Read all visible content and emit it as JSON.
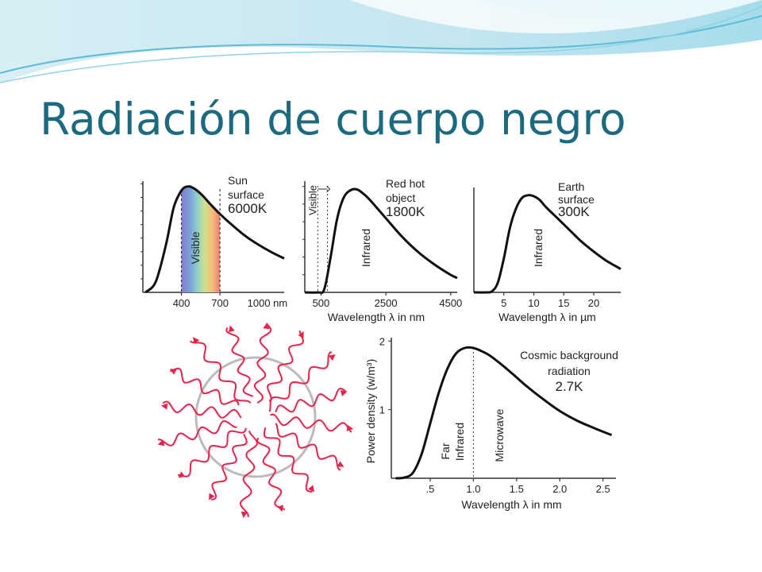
{
  "slide": {
    "title": "Radiación de cuerpo negro"
  },
  "colors": {
    "title": "#1b6a80",
    "banner_light": "#dff3f8",
    "banner_mid": "#8fd3e6",
    "curve": "#111111",
    "wave": "#e8224a",
    "circle": "#bbbbbb"
  },
  "chart_data": [
    {
      "type": "line",
      "id": "sun",
      "annotation_lines": [
        "Sun",
        "surface",
        "6000K"
      ],
      "band_label": "Visible",
      "band_range": [
        400,
        700
      ],
      "x": [
        120,
        200,
        280,
        340,
        400,
        450,
        500,
        560,
        620,
        700,
        800,
        900,
        1000,
        1100,
        1200
      ],
      "y": [
        0,
        0.1,
        0.45,
        0.8,
        0.96,
        1.0,
        0.98,
        0.92,
        0.84,
        0.74,
        0.63,
        0.53,
        0.45,
        0.38,
        0.32
      ],
      "xticks": [
        400,
        700
      ],
      "xtick_labels": [
        "400",
        "700"
      ],
      "xtick_extra": "1000 nm",
      "xlim": [
        100,
        1200
      ],
      "ylim": [
        0,
        1.05
      ],
      "ytick_count": 8
    },
    {
      "type": "line",
      "id": "redhot",
      "annotation_lines": [
        "Red hot",
        "object",
        "1800K"
      ],
      "side_label": "Visible",
      "band_label": "Infrared",
      "x": [
        0,
        400,
        600,
        800,
        1000,
        1200,
        1400,
        1600,
        1800,
        2000,
        2500,
        3000,
        3500,
        4000,
        4500,
        4700
      ],
      "y": [
        0,
        0,
        0.03,
        0.35,
        0.72,
        0.92,
        0.99,
        1.0,
        0.96,
        0.9,
        0.72,
        0.54,
        0.39,
        0.27,
        0.17,
        0.14
      ],
      "xticks": [
        500,
        2500,
        4500
      ],
      "xtick_labels": [
        "500",
        "2500",
        "4500"
      ],
      "xlabel": "Wavelength λ in nm",
      "xlim": [
        0,
        4700
      ],
      "ylim": [
        0,
        1.08
      ],
      "ytick_count": 6
    },
    {
      "type": "line",
      "id": "earth",
      "annotation_lines": [
        "Earth",
        "surface",
        "300K"
      ],
      "band_label": "Infrared",
      "x": [
        0,
        2,
        3,
        4,
        5,
        6,
        7,
        8,
        9,
        10,
        11,
        12,
        14,
        16,
        18,
        20,
        22,
        24.5
      ],
      "y": [
        0,
        0,
        0.01,
        0.1,
        0.35,
        0.66,
        0.86,
        0.97,
        1.0,
        0.99,
        0.95,
        0.88,
        0.76,
        0.64,
        0.52,
        0.42,
        0.33,
        0.24
      ],
      "xticks": [
        5,
        10,
        15,
        20
      ],
      "xtick_labels": [
        "5",
        "10",
        "15",
        "20"
      ],
      "xlabel": "Wavelength λ in µm",
      "xlim": [
        0,
        24.5
      ],
      "ylim": [
        0,
        1.08
      ]
    },
    {
      "type": "line",
      "id": "cosmic",
      "annotation_lines": [
        "Cosmic background",
        "radiation",
        "2.7K"
      ],
      "band_labels": [
        "Far",
        "Infrared",
        "Microwave"
      ],
      "divider_x": 1.0,
      "x": [
        0.1,
        0.2,
        0.3,
        0.4,
        0.5,
        0.6,
        0.7,
        0.8,
        0.9,
        1.0,
        1.1,
        1.2,
        1.4,
        1.6,
        1.8,
        2.0,
        2.2,
        2.4,
        2.6
      ],
      "y": [
        0,
        0.01,
        0.08,
        0.35,
        0.8,
        1.25,
        1.6,
        1.82,
        1.9,
        1.9,
        1.85,
        1.78,
        1.58,
        1.36,
        1.16,
        0.98,
        0.84,
        0.73,
        0.63
      ],
      "xticks": [
        0.5,
        1.0,
        1.5,
        2.0,
        2.5
      ],
      "xtick_labels": [
        ".5",
        "1.0",
        "1.5",
        "2.0",
        "2.5"
      ],
      "yticks": [
        1,
        2
      ],
      "ytick_labels": [
        "1",
        "2"
      ],
      "xlabel": "Wavelength λ in mm",
      "ylabel": "Power density (w/m³)",
      "xlim": [
        0.05,
        2.65
      ],
      "ylim": [
        0,
        2.05
      ]
    }
  ]
}
